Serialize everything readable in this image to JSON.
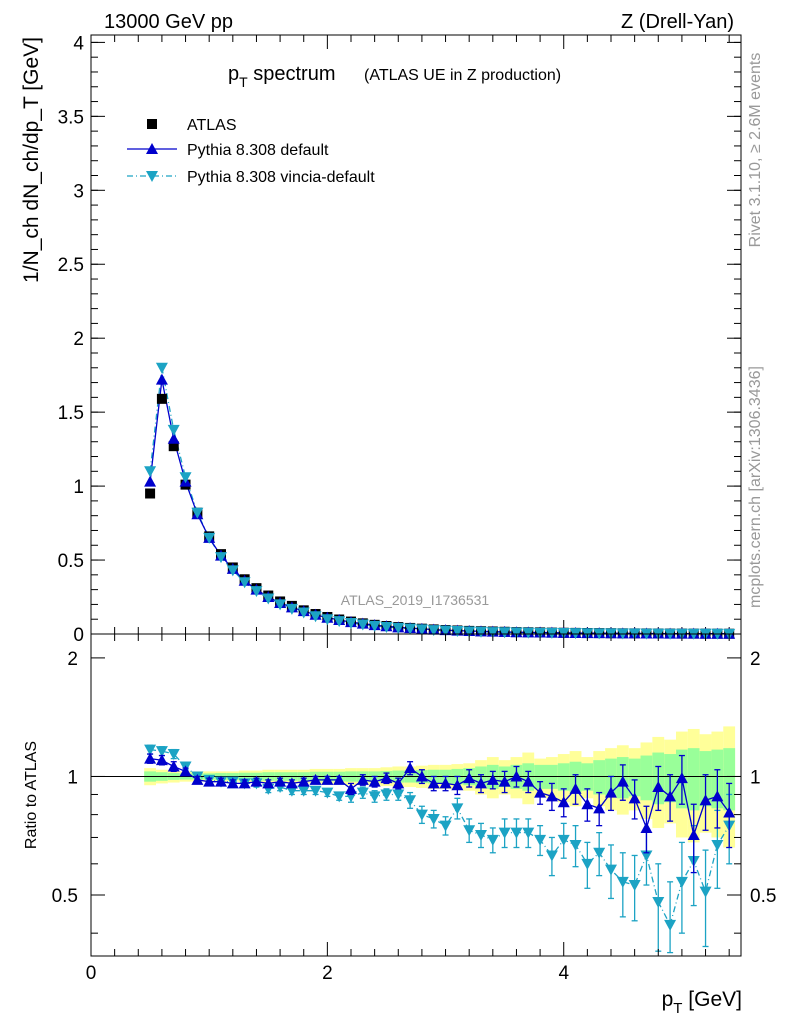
{
  "header": {
    "left": "13000 GeV pp",
    "right": "Z (Drell-Yan)"
  },
  "side_labels": {
    "rivet": "Rivet 3.1.10, ≥ 2.6M events",
    "mcplots": "mcplots.cern.ch [arXiv:1306.3436]"
  },
  "chart_data": [
    {
      "type": "scatter",
      "title": "p_T spectrum",
      "title_main": "p",
      "title_sub": "T",
      "title_rest": " spectrum",
      "title_note": "(ATLAS UE in Z production)",
      "ylabel": "1/N_ch dN_ch/dp_T [GeV]",
      "analysis_tag": "ATLAS_2019_I1736531",
      "xlim": [
        0,
        5.5
      ],
      "ylim": [
        0,
        4.05
      ],
      "y_ticks": [
        "0",
        "0.5",
        "1",
        "1.5",
        "2",
        "2.5",
        "3",
        "3.5",
        "4"
      ],
      "legend_position": "top-left",
      "x": [
        0.5,
        0.6,
        0.7,
        0.8,
        0.9,
        1.0,
        1.1,
        1.2,
        1.3,
        1.4,
        1.5,
        1.6,
        1.7,
        1.8,
        1.9,
        2.0,
        2.1,
        2.2,
        2.3,
        2.4,
        2.5,
        2.6,
        2.7,
        2.8,
        2.9,
        3.0,
        3.1,
        3.2,
        3.3,
        3.4,
        3.5,
        3.6,
        3.7,
        3.8,
        3.9,
        4.0,
        4.1,
        4.2,
        4.3,
        4.4,
        4.5,
        4.6,
        4.7,
        4.8,
        4.9,
        5.0,
        5.1,
        5.2,
        5.3,
        5.4
      ],
      "series": [
        {
          "name": "ATLAS",
          "color": "#000000",
          "marker": "square",
          "values": [
            0.95,
            1.59,
            1.27,
            1.01,
            0.82,
            0.66,
            0.54,
            0.45,
            0.37,
            0.31,
            0.26,
            0.22,
            0.19,
            0.16,
            0.135,
            0.115,
            0.098,
            0.084,
            0.072,
            0.062,
            0.054,
            0.047,
            0.041,
            0.036,
            0.031,
            0.027,
            0.024,
            0.021,
            0.019,
            0.017,
            0.015,
            0.013,
            0.012,
            0.011,
            0.0095,
            0.0085,
            0.0076,
            0.0068,
            0.0061,
            0.0055,
            0.0049,
            0.0044,
            0.004,
            0.0036,
            0.0032,
            0.0029,
            0.0026,
            0.0024,
            0.0021,
            0.0019
          ]
        },
        {
          "name": "Pythia 8.308 default",
          "color": "#0000cc",
          "marker": "triangle-up",
          "line": "solid",
          "values": [
            1.03,
            1.72,
            1.32,
            1.03,
            0.81,
            0.65,
            0.53,
            0.44,
            0.36,
            0.3,
            0.25,
            0.21,
            0.18,
            0.155,
            0.13,
            0.11,
            0.095,
            0.08,
            0.07,
            0.06,
            0.052,
            0.045,
            0.04,
            0.035,
            0.03,
            0.026,
            0.023,
            0.02,
            0.018,
            0.016,
            0.014,
            0.012,
            0.011,
            0.01,
            0.009,
            0.008,
            0.007,
            0.006,
            0.0055,
            0.005,
            0.0045,
            0.004,
            0.0036,
            0.0032,
            0.0029,
            0.0026,
            0.0024,
            0.0021,
            0.0019,
            0.0017
          ]
        },
        {
          "name": "Pythia 8.308 vincia-default",
          "color": "#1ca3c4",
          "marker": "triangle-down",
          "line": "dashdot",
          "values": [
            1.1,
            1.8,
            1.38,
            1.06,
            0.82,
            0.65,
            0.52,
            0.43,
            0.35,
            0.29,
            0.24,
            0.2,
            0.17,
            0.145,
            0.12,
            0.1,
            0.087,
            0.074,
            0.064,
            0.055,
            0.047,
            0.041,
            0.036,
            0.031,
            0.026,
            0.023,
            0.02,
            0.017,
            0.015,
            0.013,
            0.012,
            0.01,
            0.009,
            0.008,
            0.0072,
            0.0064,
            0.0057,
            0.005,
            0.0044,
            0.0039,
            0.0035,
            0.0031,
            0.0027,
            0.0024,
            0.0021,
            0.0019,
            0.0017,
            0.0015,
            0.0013,
            0.0012
          ]
        }
      ]
    },
    {
      "type": "scatter",
      "ylabel": "Ratio to ATLAS",
      "xlabel": "p_T [GeV]",
      "xlabel_main": "p",
      "xlabel_sub": "T",
      "xlabel_rest": " [GeV]",
      "xlim": [
        0,
        5.5
      ],
      "ylim": [
        0.35,
        2.3
      ],
      "x_ticks": [
        "0",
        "2",
        "4"
      ],
      "y_ticks": [
        "0.5",
        "1",
        "2"
      ],
      "x": [
        0.5,
        0.6,
        0.7,
        0.8,
        0.9,
        1.0,
        1.1,
        1.2,
        1.3,
        1.4,
        1.5,
        1.6,
        1.7,
        1.8,
        1.9,
        2.0,
        2.1,
        2.2,
        2.3,
        2.4,
        2.5,
        2.6,
        2.7,
        2.8,
        2.9,
        3.0,
        3.1,
        3.2,
        3.3,
        3.4,
        3.5,
        3.6,
        3.7,
        3.8,
        3.9,
        4.0,
        4.1,
        4.2,
        4.3,
        4.4,
        4.5,
        4.6,
        4.7,
        4.8,
        4.9,
        5.0,
        5.1,
        5.2,
        5.3,
        5.4
      ],
      "band_yellow_halfwidth": [
        0.05,
        0.04,
        0.035,
        0.03,
        0.03,
        0.03,
        0.03,
        0.03,
        0.035,
        0.035,
        0.04,
        0.04,
        0.04,
        0.04,
        0.045,
        0.045,
        0.045,
        0.05,
        0.05,
        0.05,
        0.055,
        0.06,
        0.06,
        0.065,
        0.07,
        0.07,
        0.075,
        0.08,
        0.1,
        0.12,
        0.1,
        0.12,
        0.15,
        0.11,
        0.12,
        0.14,
        0.16,
        0.12,
        0.16,
        0.18,
        0.2,
        0.18,
        0.22,
        0.26,
        0.24,
        0.3,
        0.32,
        0.28,
        0.3,
        0.34
      ],
      "band_green_halfwidth": [
        0.03,
        0.025,
        0.02,
        0.018,
        0.018,
        0.018,
        0.02,
        0.02,
        0.022,
        0.022,
        0.025,
        0.025,
        0.025,
        0.025,
        0.028,
        0.028,
        0.028,
        0.03,
        0.03,
        0.03,
        0.032,
        0.035,
        0.035,
        0.038,
        0.04,
        0.04,
        0.045,
        0.05,
        0.06,
        0.07,
        0.06,
        0.07,
        0.08,
        0.07,
        0.07,
        0.08,
        0.09,
        0.08,
        0.1,
        0.11,
        0.12,
        0.11,
        0.13,
        0.15,
        0.14,
        0.17,
        0.18,
        0.16,
        0.17,
        0.18
      ],
      "series": [
        {
          "name": "Pythia 8.308 default",
          "color": "#0000cc",
          "marker": "triangle-up",
          "values": [
            1.11,
            1.1,
            1.06,
            1.03,
            0.98,
            0.97,
            0.97,
            0.96,
            0.96,
            0.97,
            0.96,
            0.97,
            0.96,
            0.97,
            0.98,
            0.98,
            0.98,
            0.93,
            0.98,
            0.97,
            0.99,
            0.96,
            1.05,
            1.0,
            0.96,
            0.96,
            0.95,
            0.99,
            0.96,
            0.98,
            0.97,
            1.0,
            0.97,
            0.91,
            0.89,
            0.86,
            0.93,
            0.85,
            0.83,
            0.91,
            0.97,
            0.88,
            0.74,
            0.94,
            0.89,
            0.99,
            0.71,
            0.87,
            0.89,
            0.81
          ],
          "errors": [
            0.03,
            0.03,
            0.03,
            0.02,
            0.02,
            0.02,
            0.02,
            0.02,
            0.02,
            0.02,
            0.02,
            0.02,
            0.02,
            0.02,
            0.02,
            0.02,
            0.02,
            0.03,
            0.03,
            0.03,
            0.03,
            0.03,
            0.04,
            0.04,
            0.04,
            0.04,
            0.05,
            0.05,
            0.05,
            0.05,
            0.06,
            0.06,
            0.06,
            0.06,
            0.07,
            0.07,
            0.08,
            0.08,
            0.08,
            0.09,
            0.1,
            0.1,
            0.1,
            0.12,
            0.12,
            0.14,
            0.14,
            0.14,
            0.15,
            0.15
          ]
        },
        {
          "name": "Pythia 8.308 vincia-default",
          "color": "#1ca3c4",
          "marker": "triangle-down",
          "values": [
            1.17,
            1.16,
            1.14,
            1.06,
            1.0,
            0.98,
            0.97,
            0.97,
            0.96,
            0.96,
            0.93,
            0.94,
            0.92,
            0.92,
            0.92,
            0.91,
            0.89,
            0.89,
            0.91,
            0.89,
            0.9,
            0.9,
            0.87,
            0.8,
            0.78,
            0.75,
            0.83,
            0.73,
            0.71,
            0.69,
            0.72,
            0.72,
            0.72,
            0.69,
            0.63,
            0.69,
            0.67,
            0.6,
            0.64,
            0.58,
            0.54,
            0.53,
            0.63,
            0.48,
            0.42,
            0.54,
            0.61,
            0.51,
            0.67,
            0.75
          ],
          "errors": [
            0.03,
            0.03,
            0.03,
            0.02,
            0.02,
            0.02,
            0.02,
            0.02,
            0.02,
            0.02,
            0.02,
            0.02,
            0.02,
            0.02,
            0.02,
            0.02,
            0.02,
            0.03,
            0.03,
            0.03,
            0.03,
            0.03,
            0.04,
            0.04,
            0.04,
            0.04,
            0.05,
            0.05,
            0.05,
            0.05,
            0.06,
            0.06,
            0.06,
            0.06,
            0.07,
            0.07,
            0.08,
            0.08,
            0.08,
            0.09,
            0.1,
            0.1,
            0.1,
            0.12,
            0.12,
            0.14,
            0.14,
            0.14,
            0.15,
            0.15
          ]
        }
      ]
    }
  ]
}
